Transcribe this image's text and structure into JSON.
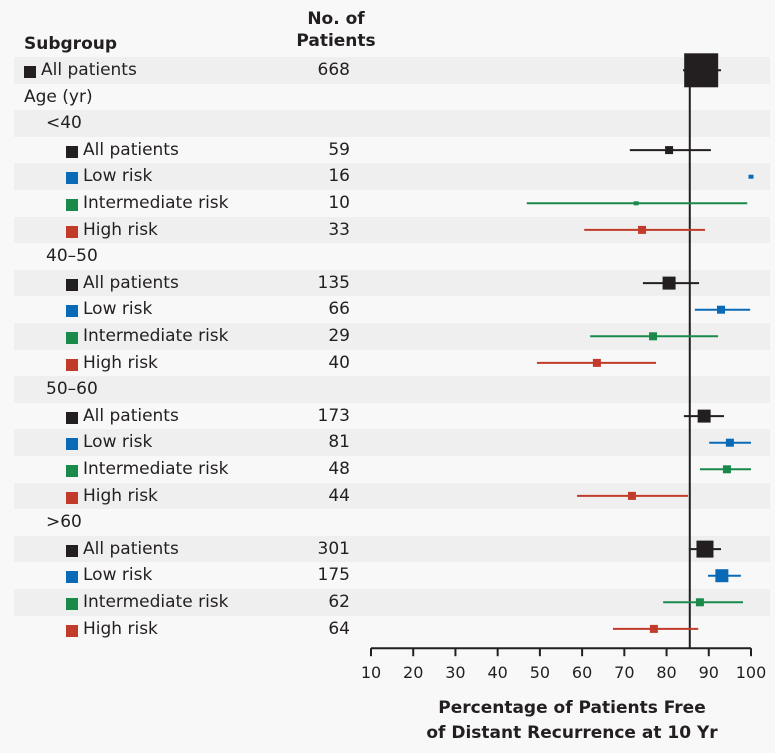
{
  "headers": {
    "subgroup": "Subgroup",
    "n_line1": "No. of",
    "n_line2": "Patients"
  },
  "colors": {
    "all": "#231f20",
    "low": "#0a6ab6",
    "intermediate": "#1a8a4a",
    "high": "#c23b2a",
    "reference_line": "#231f20"
  },
  "chart_data": {
    "type": "forest",
    "title": "",
    "xlabel_line1": "Percentage of Patients Free",
    "xlabel_line2": "of Distant Recurrence at 10 Yr",
    "xlim": [
      10,
      100
    ],
    "xticks": [
      10,
      20,
      30,
      40,
      50,
      60,
      70,
      80,
      90,
      100
    ],
    "reference_value": 85.5,
    "rows": [
      {
        "label": "All patients",
        "indent": 0,
        "n": "668",
        "group": "all",
        "est": 88.2,
        "lo": 83.9,
        "hi": 92.9,
        "marker": "xl",
        "shade": true
      },
      {
        "label": "Age (yr)",
        "indent": 0,
        "n": "",
        "shade": false
      },
      {
        "label": "<40",
        "indent": 1,
        "n": "",
        "shade": true
      },
      {
        "label": "All patients",
        "indent": 2,
        "n": "59",
        "group": "all",
        "est": 80.6,
        "lo": 71.3,
        "hi": 90.5,
        "marker": "s",
        "shade": false
      },
      {
        "label": "Low risk",
        "indent": 2,
        "n": "16",
        "group": "low",
        "est": 100,
        "lo": 100,
        "hi": 100,
        "marker": "xs",
        "shade": true
      },
      {
        "label": "Intermediate risk",
        "indent": 2,
        "n": "10",
        "group": "intermediate",
        "est": 72.8,
        "lo": 46.9,
        "hi": 99.1,
        "marker": "xs",
        "shade": false
      },
      {
        "label": "High risk",
        "indent": 2,
        "n": "33",
        "group": "high",
        "est": 74.2,
        "lo": 60.5,
        "hi": 89.1,
        "marker": "s",
        "shade": true
      },
      {
        "label": "40–50",
        "indent": 1,
        "n": "",
        "shade": false
      },
      {
        "label": "All patients",
        "indent": 2,
        "n": "135",
        "group": "all",
        "est": 80.6,
        "lo": 74.4,
        "hi": 87.7,
        "marker": "m",
        "shade": true
      },
      {
        "label": "Low risk",
        "indent": 2,
        "n": "66",
        "group": "low",
        "est": 92.9,
        "lo": 86.7,
        "hi": 99.8,
        "marker": "s",
        "shade": false
      },
      {
        "label": "Intermediate risk",
        "indent": 2,
        "n": "29",
        "group": "intermediate",
        "est": 76.8,
        "lo": 61.9,
        "hi": 92.2,
        "marker": "s",
        "shade": true
      },
      {
        "label": "High risk",
        "indent": 2,
        "n": "40",
        "group": "high",
        "est": 63.5,
        "lo": 49.3,
        "hi": 77.5,
        "marker": "s",
        "shade": false
      },
      {
        "label": "50–60",
        "indent": 1,
        "n": "",
        "shade": true
      },
      {
        "label": "All patients",
        "indent": 2,
        "n": "173",
        "group": "all",
        "est": 88.9,
        "lo": 84.1,
        "hi": 93.6,
        "marker": "m",
        "shade": false
      },
      {
        "label": "Low risk",
        "indent": 2,
        "n": "81",
        "group": "low",
        "est": 95.0,
        "lo": 90.1,
        "hi": 100,
        "marker": "s",
        "shade": true
      },
      {
        "label": "Intermediate risk",
        "indent": 2,
        "n": "48",
        "group": "intermediate",
        "est": 94.3,
        "lo": 87.9,
        "hi": 100,
        "marker": "s",
        "shade": false
      },
      {
        "label": "High risk",
        "indent": 2,
        "n": "44",
        "group": "high",
        "est": 71.8,
        "lo": 58.8,
        "hi": 85.1,
        "marker": "s",
        "shade": true
      },
      {
        "label": ">60",
        "indent": 1,
        "n": "",
        "shade": false
      },
      {
        "label": "All patients",
        "indent": 2,
        "n": "301",
        "group": "all",
        "est": 89.1,
        "lo": 85.3,
        "hi": 92.9,
        "marker": "l",
        "shade": true
      },
      {
        "label": "Low risk",
        "indent": 2,
        "n": "175",
        "group": "low",
        "est": 93.1,
        "lo": 89.8,
        "hi": 97.6,
        "marker": "m",
        "shade": false
      },
      {
        "label": "Intermediate risk",
        "indent": 2,
        "n": "62",
        "group": "intermediate",
        "est": 87.9,
        "lo": 79.2,
        "hi": 98.1,
        "marker": "s",
        "shade": true
      },
      {
        "label": "High risk",
        "indent": 2,
        "n": "64",
        "group": "high",
        "est": 77.0,
        "lo": 67.3,
        "hi": 87.5,
        "marker": "s",
        "shade": false
      }
    ]
  }
}
